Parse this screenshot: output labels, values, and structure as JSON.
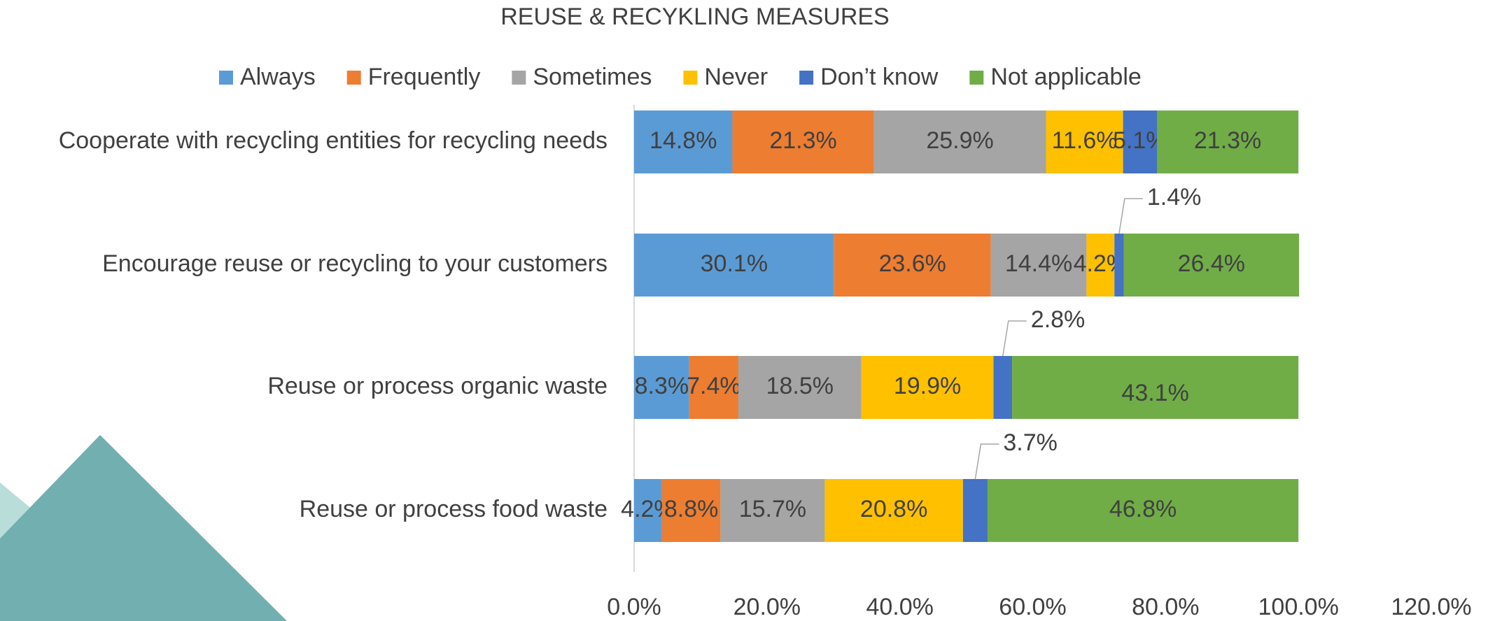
{
  "chart_data": {
    "type": "stacked-bar-horizontal",
    "title": "REUSE & RECYKLING MEASURES",
    "categories": [
      "Cooperate with recycling entities for recycling needs",
      "Encourage reuse or recycling to your customers",
      "Reuse or process organic waste",
      "Reuse or process food waste"
    ],
    "series": [
      {
        "name": "Always",
        "color": "#5b9bd5",
        "values": [
          14.8,
          30.1,
          8.3,
          4.2
        ],
        "value_labels": [
          "14.8%",
          "30.1%",
          "8.3%",
          "4.2%"
        ]
      },
      {
        "name": "Frequently",
        "color": "#ed7d31",
        "values": [
          21.3,
          23.6,
          7.4,
          8.8
        ],
        "value_labels": [
          "21.3%",
          "23.6%",
          "7.4%",
          "8.8%"
        ]
      },
      {
        "name": "Sometimes",
        "color": "#a5a5a5",
        "values": [
          25.9,
          14.4,
          18.5,
          15.7
        ],
        "value_labels": [
          "25.9%",
          "14.4%",
          "18.5%",
          "15.7%"
        ]
      },
      {
        "name": "Never",
        "color": "#ffc000",
        "values": [
          11.6,
          4.2,
          19.9,
          20.8
        ],
        "value_labels": [
          "11.6%",
          "4.2%",
          "19.9%",
          "20.8%"
        ]
      },
      {
        "name": "Don’t know",
        "color": "#4472c4",
        "values": [
          5.1,
          1.4,
          2.8,
          3.7
        ],
        "value_labels": [
          "5.1%",
          "1.4%",
          "2.8%",
          "3.7%"
        ]
      },
      {
        "name": "Not applicable",
        "color": "#70ad47",
        "values": [
          21.3,
          26.4,
          43.1,
          46.8
        ],
        "value_labels": [
          "21.3%",
          "26.4%",
          "43.1%",
          "46.8%"
        ]
      }
    ],
    "xlim": [
      0,
      120
    ],
    "xticks": [
      {
        "value": 0,
        "label": "0.0%"
      },
      {
        "value": 20,
        "label": "20.0%"
      },
      {
        "value": 40,
        "label": "40.0%"
      },
      {
        "value": 60,
        "label": "60.0%"
      },
      {
        "value": 80,
        "label": "80.0%"
      },
      {
        "value": 100,
        "label": "100.0%"
      },
      {
        "value": 120,
        "label": "120.0%"
      }
    ],
    "legend": "top"
  }
}
